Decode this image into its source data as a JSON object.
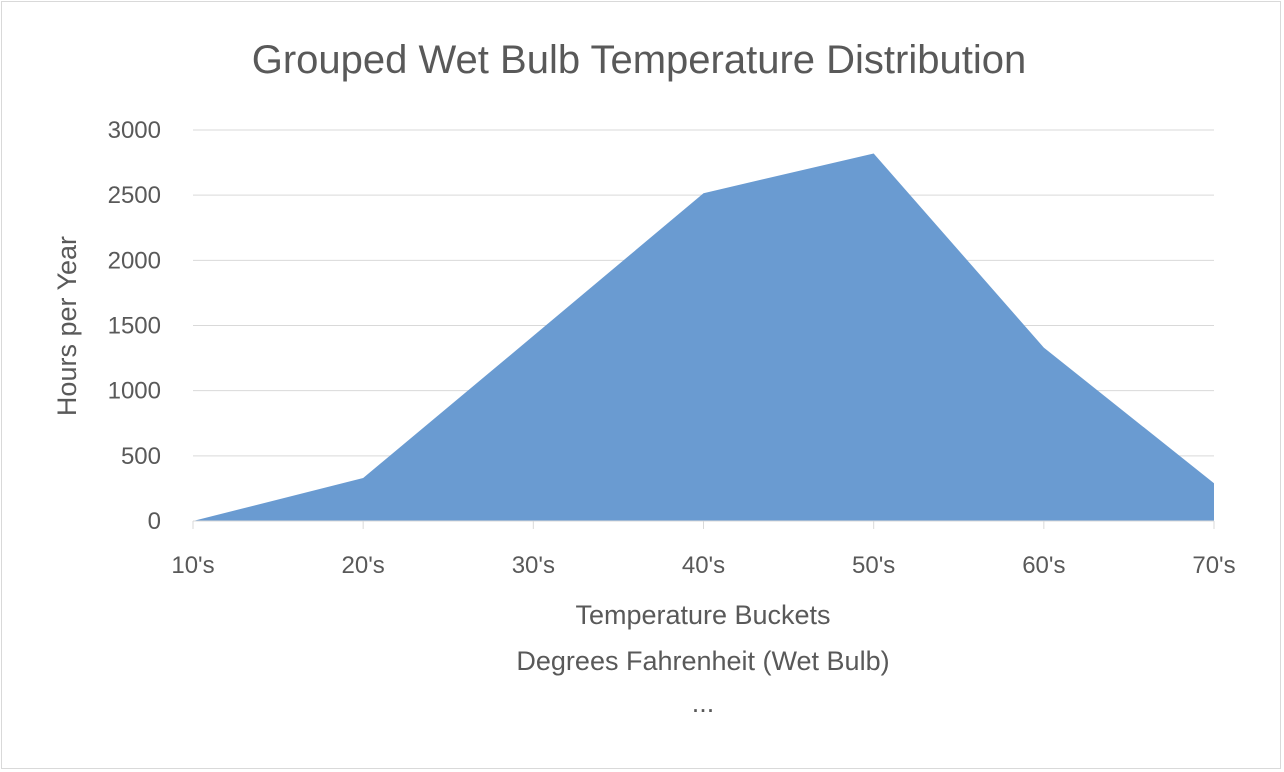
{
  "chart_data": {
    "type": "area",
    "title": "Grouped Wet Bulb Temperature Distribution",
    "xlabel_lines": [
      "Temperature Buckets",
      "Degrees Fahrenheit (Wet Bulb)",
      "..."
    ],
    "ylabel": "Hours per Year",
    "categories": [
      "10's",
      "20's",
      "30's",
      "40's",
      "50's",
      "60's",
      "70's"
    ],
    "series": [
      {
        "values": [
          0,
          330,
          1420,
          2515,
          2820,
          1330,
          290
        ]
      }
    ],
    "ylim": [
      0,
      3000
    ],
    "yticks": [
      0,
      500,
      1000,
      1500,
      2000,
      2500,
      3000
    ],
    "grid": true,
    "legend": "none",
    "colors": {
      "area": "#6a9bd1",
      "text": "#595959",
      "grid": "#d9d9d9"
    }
  }
}
